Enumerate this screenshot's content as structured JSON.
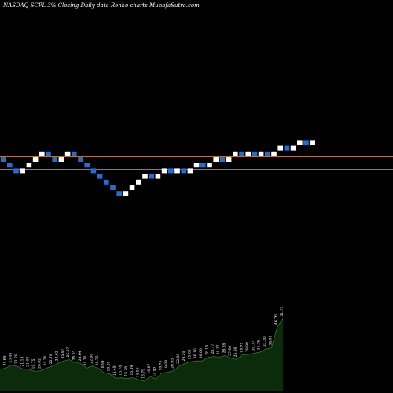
{
  "header": {
    "title": "NASDAQ SCPL  3% Closing Daily data  Renko  charts MunafaSutra.com"
  },
  "chart_data": [
    {
      "type": "renko",
      "title": "NASDAQ SCPL  3% Closing Daily data  Renko  charts MunafaSutra.com",
      "box_size_percent": 3,
      "colors": {
        "up": "#ffffff",
        "down": "#1f6fd8",
        "reference_line": "#b8732a",
        "background": "#000000"
      },
      "directions": [
        "down",
        "down",
        "down",
        "up",
        "up",
        "up",
        "up",
        "down",
        "down",
        "up",
        "up",
        "down",
        "down",
        "down",
        "down",
        "down",
        "down",
        "down",
        "down",
        "up",
        "up",
        "up",
        "up",
        "down",
        "up",
        "up",
        "down",
        "up",
        "down",
        "up",
        "up",
        "down",
        "up",
        "up",
        "down",
        "up",
        "up",
        "down",
        "up",
        "down",
        "up",
        "down",
        "up",
        "up",
        "down",
        "up",
        "up",
        "down",
        "up"
      ],
      "reference_levels": [
        "upper",
        "lower"
      ]
    },
    {
      "type": "bar",
      "series": [
        {
          "values": [
            20.96,
            21.69,
            23.45,
            22.78,
            21.15,
            21.08,
            19.75,
            20.02,
            21.7,
            22.78,
            24.62,
            25.97,
            26.87,
            25.03,
            24.64,
            21.7,
            22.98,
            21.73,
            18.94,
            18.28,
            15.49,
            15.78,
            15.26,
            15.89,
            14.56,
            13.79,
            16.87,
            14.92,
            18.76,
            19.08,
            20.05,
            22.98,
            24.5,
            25.62,
            26.1,
            26.06,
            28.16,
            28.77,
            28.37,
            29.39,
            27.69,
            26.99,
            29.75,
            29.98,
            30.77,
            31.36,
            33.3,
            34.08,
            46.76,
            51.75
          ],
          "labels": [
            "20.96",
            "21.69",
            "23.45",
            "22.78",
            "21.15",
            "21.08",
            "19.75",
            "20.02",
            "21.70",
            "22.78",
            "24.62",
            "25.97",
            "26.87",
            "25.03",
            "24.64",
            "21.70",
            "22.98",
            "21.73",
            "18.94",
            "18.28",
            "15.49",
            "15.78",
            "15.26",
            "15.89",
            "14.56",
            "13.79",
            "16.87",
            "14.92",
            "18.76",
            "19.08",
            "20.05",
            "22.98",
            "24.50",
            "25.62",
            "26.10",
            "26.06",
            "28.16",
            "28.77",
            "28.37",
            "29.39",
            "27.69",
            "26.99",
            "29.75",
            "29.98",
            "30.77",
            "31.36",
            "33.30",
            "34.08",
            "46.76",
            "51.75"
          ]
        }
      ],
      "colors": {
        "fill": "#0b2b0b",
        "edge": "#2a7a2a"
      }
    }
  ]
}
